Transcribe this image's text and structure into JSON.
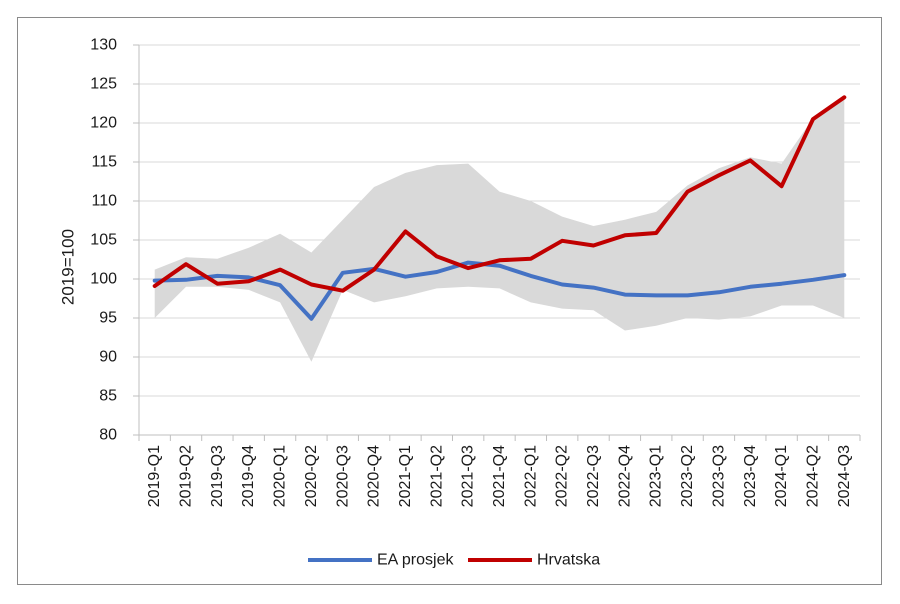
{
  "chart_data": {
    "type": "line",
    "title": "",
    "xlabel": "",
    "ylabel": "2019=100",
    "ylim": [
      80,
      130
    ],
    "yticks": [
      80,
      85,
      90,
      95,
      100,
      105,
      110,
      115,
      120,
      125,
      130
    ],
    "grid": true,
    "legend_position": "bottom",
    "categories": [
      "2019-Q1",
      "2019-Q2",
      "2019-Q3",
      "2019-Q4",
      "2020-Q1",
      "2020-Q2",
      "2020-Q3",
      "2020-Q4",
      "2021-Q1",
      "2021-Q2",
      "2021-Q3",
      "2021-Q4",
      "2022-Q1",
      "2022-Q2",
      "2022-Q3",
      "2022-Q4",
      "2023-Q1",
      "2023-Q2",
      "2023-Q3",
      "2023-Q4",
      "2024-Q1",
      "2024-Q2",
      "2024-Q3"
    ],
    "band": {
      "color": "#d9d9d9",
      "upper": [
        101.2,
        102.8,
        102.6,
        104.0,
        105.8,
        103.4,
        107.6,
        111.8,
        113.6,
        114.6,
        114.8,
        111.2,
        110.0,
        108.0,
        106.8,
        107.6,
        108.6,
        112.0,
        114.2,
        115.6,
        114.8,
        120.6,
        123.2
      ],
      "lower": [
        95.0,
        99.0,
        99.0,
        98.6,
        97.0,
        89.4,
        98.6,
        97.0,
        97.8,
        98.8,
        99.0,
        98.8,
        97.0,
        96.2,
        96.0,
        93.4,
        94.0,
        95.0,
        94.8,
        95.2,
        96.6,
        96.6,
        95.0
      ]
    },
    "series": [
      {
        "name": "EA prosjek",
        "color": "#4472c4",
        "values": [
          99.8,
          99.9,
          100.4,
          100.2,
          99.2,
          94.9,
          100.8,
          101.3,
          100.3,
          100.9,
          102.1,
          101.7,
          100.4,
          99.3,
          98.9,
          98.0,
          97.9,
          97.9,
          98.3,
          99.0,
          99.4,
          99.9,
          100.5
        ]
      },
      {
        "name": "Hrvatska",
        "color": "#c00000",
        "values": [
          99.1,
          101.9,
          99.4,
          99.7,
          101.2,
          99.3,
          98.5,
          101.2,
          106.1,
          102.9,
          101.4,
          102.4,
          102.6,
          104.9,
          104.3,
          105.6,
          105.9,
          111.2,
          113.3,
          115.2,
          111.9,
          120.5,
          123.3
        ]
      }
    ]
  }
}
